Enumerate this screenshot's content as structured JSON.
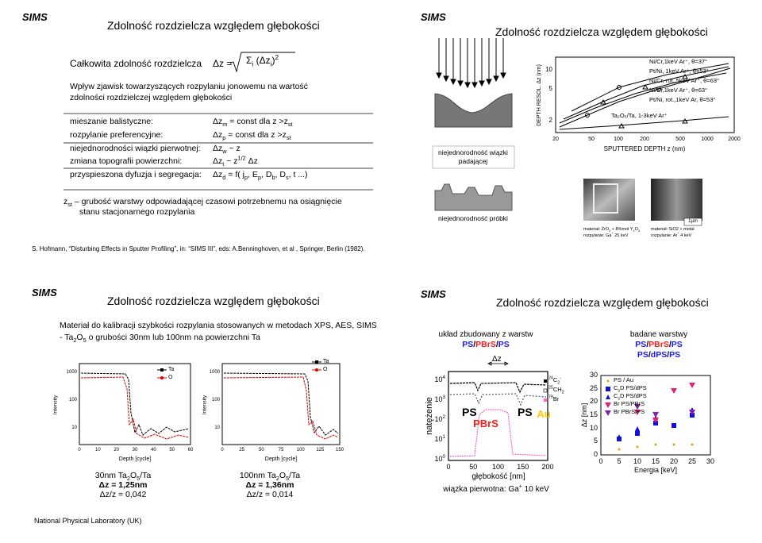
{
  "slides": [
    {
      "logo": "SIMS",
      "title": "Zdolność rozdzielcza względem głębokości",
      "heading": "Całkowita zdolność rozdzielcza",
      "formula_lhs": "Δz =",
      "formula_rhs": [
        "Σ",
        {
          "sub": "i"
        },
        " (Δz",
        {
          "sub": "i"
        },
        ")",
        {
          "sup": "2"
        }
      ],
      "intro": [
        "Wpływ zjawisk towarzyszących rozpylaniu jonowemu na wartość",
        "zdolności rozdzielczej względem głębokości"
      ],
      "effects": [
        {
          "label": "mieszanie balistyczne:",
          "formula": [
            "Δz",
            {
              "sub": "m"
            },
            " = const dla z >z",
            {
              "sub": "st"
            }
          ]
        },
        {
          "label": "rozpylanie preferencyjne:",
          "formula": [
            "Δz",
            {
              "sub": "p"
            },
            " = const dla z >z",
            {
              "sub": "st"
            }
          ]
        },
        {
          "label": "niejednorodności wiązki pierwotnej:",
          "formula": [
            "Δz",
            {
              "sub": "w"
            },
            " ~ z"
          ]
        },
        {
          "label": "zmiana topografii powierzchni:",
          "formula": [
            "Δz",
            {
              "sub": "t"
            },
            " ~ z",
            {
              "sup": "1/2"
            },
            " Δz"
          ]
        },
        {
          "label": "przyspieszona dyfuzja i segregacja:",
          "formula": [
            "Δz",
            {
              "sub": "d"
            },
            " = f( j",
            {
              "sub": "p"
            },
            ", E",
            {
              "sub": "p"
            },
            ", D",
            {
              "sub": "b"
            },
            ", D",
            {
              "sub": "s"
            },
            ", t ...)"
          ]
        }
      ],
      "note": [
        [
          "z",
          {
            "sub": "st"
          },
          " – grubość warstwy odpowiadającej czasowi potrzebnemu na osiągnięcie"
        ],
        [
          "stanu stacjonarnego rozpylania"
        ]
      ],
      "reference": "S. Hofmann, “Disturbing Effects in Sputter Profiling”, in: “SIMS III”, eds: A.Benninghoven, et al , Springer, Berlin (1982)."
    },
    {
      "logo": "SIMS",
      "title": "Zdolność rozdzielcza względem głębokości",
      "diagrams": [
        [
          "niejednorodność wiązki",
          "padającej"
        ],
        [
          "niejednorodność próbki"
        ]
      ],
      "plot": {
        "ylabel": "DEPTH RESOL. Δz (nm)",
        "yticks": [
          "10",
          "5",
          "2"
        ],
        "xticks": [
          "20",
          "50",
          "100",
          "200",
          "500",
          "1000",
          "2000"
        ],
        "xlabel": "SPUTTERED DEPTH z (nm)",
        "legend": [
          "Ni/Cr,1keV Ar⁺, θ=37°",
          "Pt/Ni, 1keV Ar⁺, θ=53°",
          "Ni/Cr, rot.,5keV Ar⁺, θ=63°",
          "Ni/Cr,1keV Ar⁺, θ=63°",
          "Pt/Ni, rot.,1keV Ar, θ=53°",
          "Ta₂O₅/Ta, 1-3keV Ar⁺"
        ]
      },
      "photos": [
        {
          "caption": [
            [
              "materiał: ZrO",
              {
                "sub": "2"
              },
              " + 8%mol Y",
              {
                "sub": "2"
              },
              "O",
              {
                "sub": "3"
              }
            ],
            [
              "rozpylanie: Ga",
              {
                "sup": "+"
              },
              "  25 keV"
            ]
          ]
        },
        {
          "scale": "1µm",
          "caption": [
            [
              "materiał:  SiO2 + metal"
            ],
            [
              "rozpylanie: Ar",
              {
                "sup": "+"
              },
              "  4 keV"
            ]
          ]
        }
      ]
    },
    {
      "logo": "SIMS",
      "title": "Zdolność rozdzielcza względem głębokości",
      "text": [
        [
          "Materiał do kalibracji szybkości rozpylania stosowanych w metodach XPS, AES, SIMS"
        ],
        [
          "- Ta",
          {
            "sub": "2"
          },
          "O",
          {
            "sub": "5"
          },
          "  o grubości 30nm lub 100nm na powierzchni Ta"
        ]
      ],
      "charts": [
        {
          "ylabel": "Intensity",
          "yticks": [
            "1000",
            "100",
            "10"
          ],
          "xticks": [
            "0",
            "10",
            "20",
            "30",
            "40",
            "50",
            "60"
          ],
          "xlabel": "Depth [cycle]",
          "legend": [
            {
              "name": "Ta",
              "color": "#000000"
            },
            {
              "name": "O",
              "color": "#e00000"
            }
          ],
          "caption": [
            [
              "30nm Ta",
              {
                "sub": "2"
              },
              "O",
              {
                "sub": "5"
              },
              "/Ta"
            ],
            [
              "Δz = 1,25nm"
            ],
            [
              "Δz/z = 0,042"
            ]
          ]
        },
        {
          "ylabel": "Intensity",
          "yticks": [
            "1000",
            "100",
            "10"
          ],
          "xticks": [
            "0",
            "25",
            "50",
            "75",
            "100",
            "125",
            "150"
          ],
          "xlabel": "Depth [cycle]",
          "legend": [
            {
              "name": "Ta",
              "color": "#000000"
            },
            {
              "name": "O",
              "color": "#e00000"
            }
          ],
          "caption": [
            [
              "100nm Ta",
              {
                "sub": "2"
              },
              "O",
              {
                "sub": "5"
              },
              "/Ta"
            ],
            [
              "Δz = 1,36nm"
            ],
            [
              "Δz/z = 0,014"
            ]
          ]
        }
      ]
    },
    {
      "logo": "SIMS",
      "title": "Zdolność rozdzielcza względem głębokości",
      "layers": {
        "heading": "układ zbudowany z warstw",
        "stack": [
          {
            "text": "PS",
            "color": "#1a1aff"
          },
          {
            "text": "/"
          },
          {
            "text": "PBrS",
            "color": "#ff1a1a"
          },
          {
            "text": "/"
          },
          {
            "text": "PS",
            "color": "#1a1aff"
          }
        ]
      },
      "studied": {
        "heading": "badane warstwy",
        "stacks": [
          [
            {
              "text": "PS",
              "color": "#1a1aff"
            },
            {
              "text": "/"
            },
            {
              "text": "PBrS",
              "color": "#ff1a1a"
            },
            {
              "text": "/"
            },
            {
              "text": "PS",
              "color": "#1a1aff"
            }
          ],
          [
            {
              "text": "PS",
              "color": "#1a1aff"
            },
            {
              "text": "/"
            },
            {
              "text": "dPS",
              "color": "#1a1aff"
            },
            {
              "text": "/"
            },
            {
              "text": "PS",
              "color": "#1a1aff"
            }
          ]
        ]
      },
      "profile": {
        "ylabel": "natężenie",
        "yticks": [
          [
            "10",
            {
              "sup": "4"
            }
          ],
          [
            "10",
            {
              "sup": "3"
            }
          ],
          [
            "10",
            {
              "sup": "2"
            }
          ],
          [
            "10",
            {
              "sup": "1"
            }
          ],
          [
            "10",
            {
              "sup": "0"
            }
          ]
        ],
        "xticks": [
          "0",
          "50",
          "100",
          "150",
          "200"
        ],
        "xlabel": "głębokość [nm]",
        "legend": [
          [
            {
              "sup": "24"
            },
            "C",
            {
              "sub": "2"
            },
            {
              "sup": "-"
            }
          ],
          [
            {
              "sup": "25"
            },
            "CH",
            {
              "sub": "2"
            }
          ],
          [
            {
              "sup": "79"
            },
            "Br"
          ]
        ],
        "labels": [
          "PS",
          "PBrS",
          "PS",
          "Au",
          "Δz"
        ],
        "footnote": [
          "wiązka pierwotna: Ga",
          {
            "sup": "+"
          },
          " 10 keV"
        ]
      },
      "energy": {
        "ylabel": "Δz [nm]",
        "yticks": [
          "30",
          "25",
          "20",
          "15",
          "10",
          "5",
          "0"
        ],
        "xticks": [
          "0",
          "5",
          "10",
          "15",
          "20",
          "25",
          "30"
        ],
        "xlabel": "Energia [keV]",
        "legend": [
          {
            "name": [
              "PS / Au"
            ],
            "color": "#f0a000",
            "marker": "dot"
          },
          {
            "name": [
              "C",
              {
                "sub": "s"
              },
              "D PS/dPS"
            ],
            "color": "#1010e0",
            "marker": "square"
          },
          {
            "name": [
              "C",
              {
                "sub": "s"
              },
              "D PS/dPS"
            ],
            "color": "#1010e0",
            "marker": "triangle"
          },
          {
            "name": [
              "Br PS/PBrS"
            ],
            "color": "#e0207a",
            "marker": "triangle-down"
          },
          {
            "name": [
              "Br PBrS/PS"
            ],
            "color": "#8020b0",
            "marker": "triangle-down"
          }
        ]
      }
    }
  ],
  "footer": "National Physical Laboratory (UK)"
}
